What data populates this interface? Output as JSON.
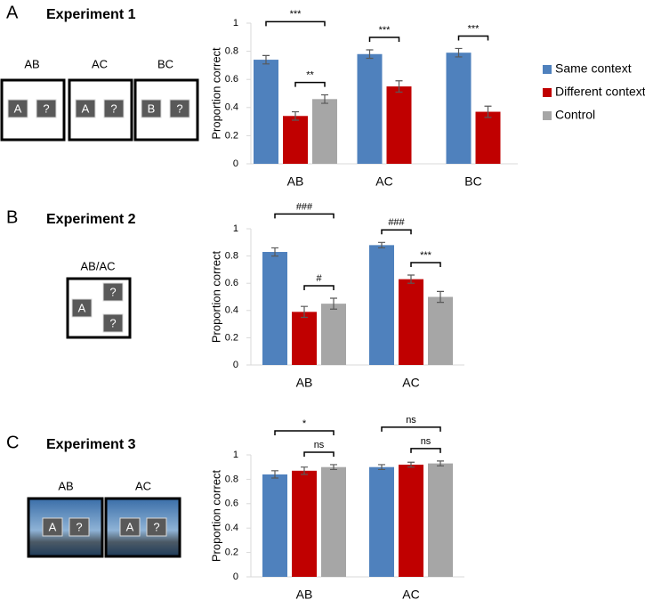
{
  "panels": [
    {
      "letter": "A",
      "title": "Experiment 1",
      "stimuli": [
        {
          "label": "AB",
          "items": [
            "A",
            "?"
          ]
        },
        {
          "label": "AC",
          "items": [
            "A",
            "?"
          ]
        },
        {
          "label": "BC",
          "items": [
            "B",
            "?"
          ]
        }
      ]
    },
    {
      "letter": "B",
      "title": "Experiment 2",
      "stimuli": [
        {
          "label": "AB/AC",
          "items": [
            "A",
            "?",
            "?"
          ]
        }
      ]
    },
    {
      "letter": "C",
      "title": "Experiment 3",
      "stimuli": [
        {
          "label": "AB",
          "items": [
            "A",
            "?"
          ]
        },
        {
          "label": "AC",
          "items": [
            "A",
            "?"
          ]
        }
      ]
    }
  ],
  "chart_data": [
    {
      "type": "bar",
      "ylabel": "Proportion correct",
      "categories": [
        "AB",
        "AC",
        "BC"
      ],
      "ylim": [
        0,
        1
      ],
      "yticks": [
        0,
        0.2,
        0.4,
        0.6,
        0.8,
        1
      ],
      "legend": "right",
      "series": [
        {
          "name": "Same context",
          "color": "#4f81bd",
          "values": [
            0.74,
            0.78,
            0.79
          ],
          "errors": [
            0.03,
            0.03,
            0.03
          ]
        },
        {
          "name": "Different context",
          "color": "#c00000",
          "values": [
            0.34,
            0.55,
            0.37
          ],
          "errors": [
            0.03,
            0.04,
            0.04
          ]
        },
        {
          "name": "Control",
          "color": "#a6a6a6",
          "values": [
            0.46,
            null,
            null
          ],
          "errors": [
            0.03,
            null,
            null
          ]
        }
      ],
      "annotations": [
        {
          "text": "***",
          "category": "AB",
          "between": [
            "Same context",
            "Control"
          ]
        },
        {
          "text": "**",
          "category": "AB",
          "between": [
            "Different context",
            "Control"
          ]
        },
        {
          "text": "***",
          "category": "AC",
          "between": [
            "Same context",
            "Different context"
          ]
        },
        {
          "text": "***",
          "category": "BC",
          "between": [
            "Same context",
            "Different context"
          ]
        }
      ]
    },
    {
      "type": "bar",
      "ylabel": "Proportion correct",
      "categories": [
        "AB",
        "AC"
      ],
      "ylim": [
        0,
        1
      ],
      "yticks": [
        0,
        0.2,
        0.4,
        0.6,
        0.8,
        1
      ],
      "series": [
        {
          "name": "Same context",
          "color": "#4f81bd",
          "values": [
            0.83,
            0.88
          ],
          "errors": [
            0.03,
            0.02
          ]
        },
        {
          "name": "Different context",
          "color": "#c00000",
          "values": [
            0.39,
            0.63
          ],
          "errors": [
            0.04,
            0.03
          ]
        },
        {
          "name": "Control",
          "color": "#a6a6a6",
          "values": [
            0.45,
            0.5
          ],
          "errors": [
            0.04,
            0.04
          ]
        }
      ],
      "annotations": [
        {
          "text": "###",
          "category": "AB",
          "between": [
            "Same context",
            "Control"
          ]
        },
        {
          "text": "#",
          "category": "AB",
          "between": [
            "Different context",
            "Control"
          ]
        },
        {
          "text": "###",
          "category": "AC",
          "between": [
            "Same context",
            "Different context"
          ]
        },
        {
          "text": "***",
          "category": "AC",
          "between": [
            "Different context",
            "Control"
          ]
        }
      ]
    },
    {
      "type": "bar",
      "ylabel": "Proportion correct",
      "categories": [
        "AB",
        "AC"
      ],
      "ylim": [
        0,
        1
      ],
      "yticks": [
        0,
        0.2,
        0.4,
        0.6,
        0.8,
        1
      ],
      "series": [
        {
          "name": "Same context",
          "color": "#4f81bd",
          "values": [
            0.84,
            0.9
          ],
          "errors": [
            0.03,
            0.02
          ]
        },
        {
          "name": "Different context",
          "color": "#c00000",
          "values": [
            0.87,
            0.92
          ],
          "errors": [
            0.03,
            0.02
          ]
        },
        {
          "name": "Control",
          "color": "#a6a6a6",
          "values": [
            0.9,
            0.93
          ],
          "errors": [
            0.02,
            0.02
          ]
        }
      ],
      "annotations": [
        {
          "text": "*",
          "category": "AB",
          "between": [
            "Same context",
            "Control"
          ]
        },
        {
          "text": "ns",
          "category": "AB",
          "between": [
            "Different context",
            "Control"
          ]
        },
        {
          "text": "ns",
          "category": "AC",
          "between": [
            "Same context",
            "Control"
          ]
        },
        {
          "text": "ns",
          "category": "AC",
          "between": [
            "Different context",
            "Control"
          ]
        }
      ]
    }
  ]
}
